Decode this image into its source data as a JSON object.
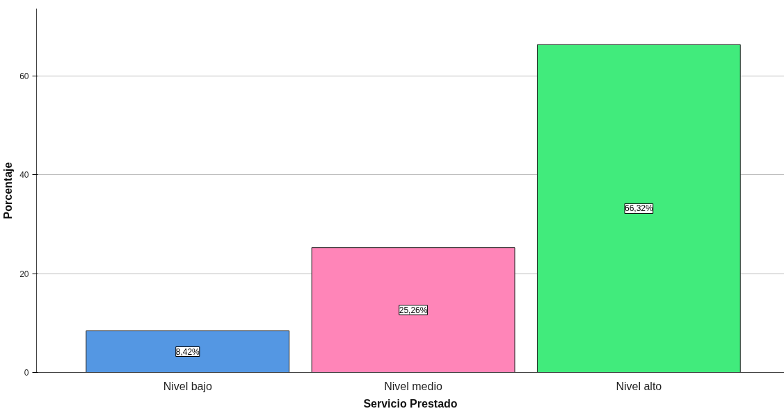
{
  "chart_data": {
    "type": "bar",
    "xlabel": "Servicio Prestado",
    "ylabel": "Porcentaje",
    "categories": [
      "Nivel bajo",
      "Nivel medio",
      "Nivel alto"
    ],
    "values": [
      8.42,
      25.26,
      66.32
    ],
    "colors": [
      "#5497e3",
      "#ff85b8",
      "#41eb7c"
    ],
    "value_labels": [
      "8,42%",
      "25,26%",
      "66,32%"
    ],
    "ylim": [
      0,
      73.6
    ],
    "yticks": [
      0,
      20,
      40,
      60
    ],
    "grid": "y"
  }
}
